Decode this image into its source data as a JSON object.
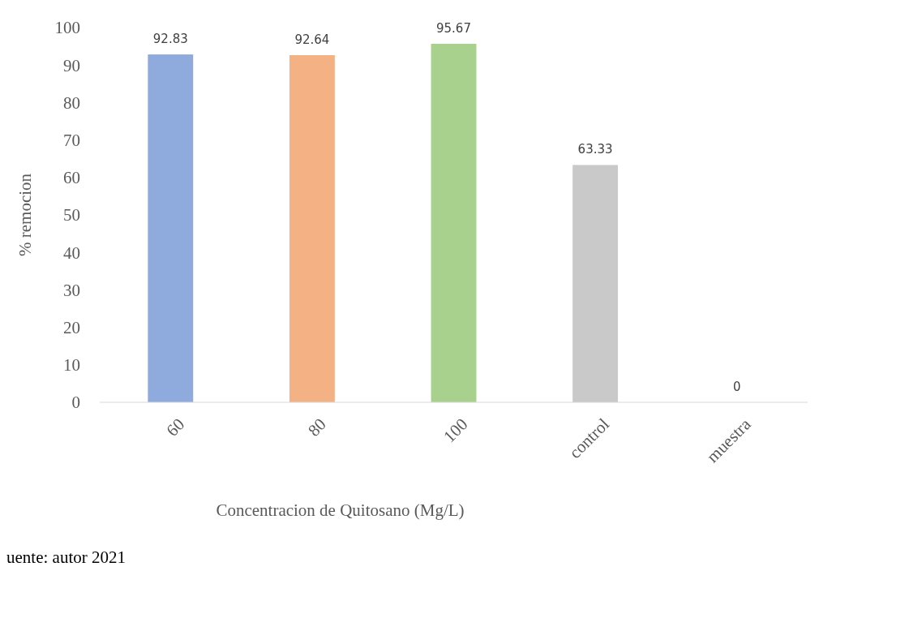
{
  "chart_data": {
    "type": "bar",
    "xlabel": "Concentracion de Quitosano (Mg/L)",
    "ylabel": "% remocion",
    "categories": [
      "60",
      "80",
      "100",
      "control",
      "muestra"
    ],
    "values": [
      92.83,
      92.64,
      95.67,
      63.33,
      0
    ],
    "colors": [
      "#8faadc",
      "#f4b183",
      "#a9d18e",
      "#c9c9c9",
      "#9dc3e6"
    ],
    "ylim": [
      0,
      100
    ],
    "yticks": [
      0,
      10,
      20,
      30,
      40,
      50,
      60,
      70,
      80,
      90,
      100
    ],
    "data_labels": true,
    "grid": false,
    "annotations": [
      "uente: autor 2021"
    ]
  }
}
